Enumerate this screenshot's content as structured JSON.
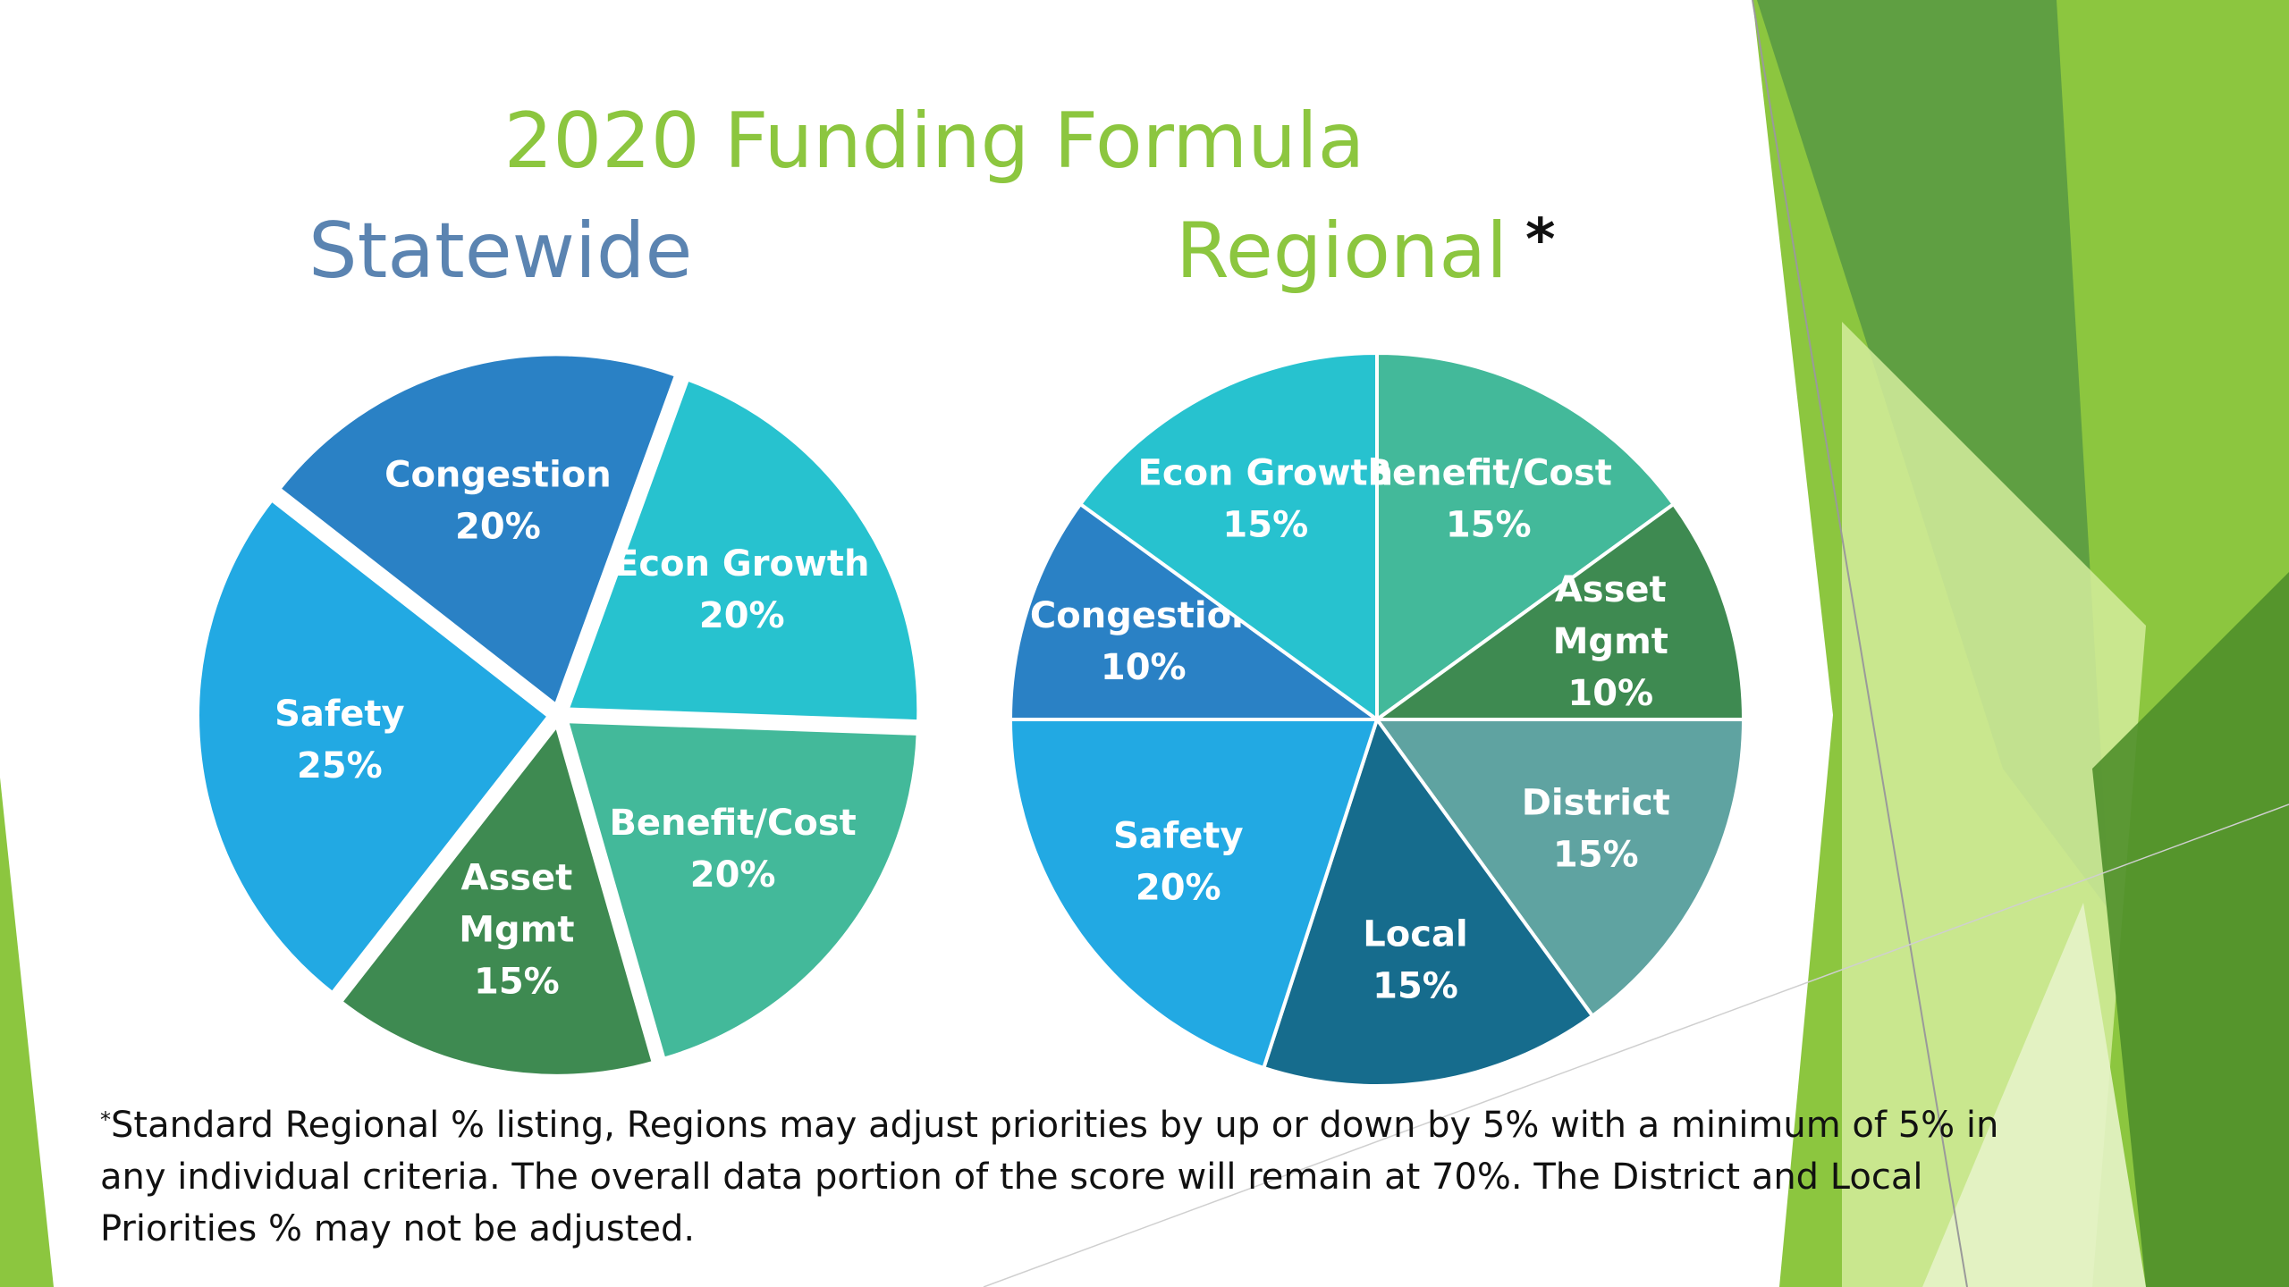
{
  "slide": {
    "title": "2020 Funding Formula",
    "left_heading": "Statewide",
    "right_heading": "Regional",
    "right_heading_mark": "*",
    "footnote_marker": "*",
    "footnote_text": "Standard Regional % listing, Regions may adjust priorities by up or down by 5% with a minimum of 5% in any individual criteria.  The overall data portion of the score will remain at 70%.  The District and Local Priorities % may not be adjusted."
  },
  "colors": {
    "title_green": "#8cc63f",
    "heading_blue": "#5b84b1"
  },
  "chart_data": [
    {
      "type": "pie",
      "title": "Statewide",
      "slices": [
        {
          "label": "Congestion",
          "value": 20,
          "value_label": "20%",
          "color": "#2a81c5"
        },
        {
          "label": "Econ Growth",
          "value": 20,
          "value_label": "20%",
          "color": "#27c2cf"
        },
        {
          "label": "Benefit/Cost",
          "value": 20,
          "value_label": "20%",
          "color": "#43b99a"
        },
        {
          "label": "Asset Mgmt",
          "value": 15,
          "value_label": "15%",
          "color": "#3e8a51"
        },
        {
          "label": "Safety",
          "value": 25,
          "value_label": "25%",
          "color": "#22a9e3"
        }
      ]
    },
    {
      "type": "pie",
      "title": "Regional",
      "slices": [
        {
          "label": "Benefit/Cost",
          "value": 15,
          "value_label": "15%",
          "color": "#43b99a"
        },
        {
          "label": "Asset Mgmt",
          "value": 10,
          "value_label": "10%",
          "color": "#3e8a51"
        },
        {
          "label": "District",
          "value": 15,
          "value_label": "15%",
          "color": "#5fa3a1"
        },
        {
          "label": "Local",
          "value": 15,
          "value_label": "15%",
          "color": "#166c8d"
        },
        {
          "label": "Safety",
          "value": 20,
          "value_label": "20%",
          "color": "#22a9e3"
        },
        {
          "label": "Congestion",
          "value": 10,
          "value_label": "10%",
          "color": "#2a81c5"
        },
        {
          "label": "Econ Growth",
          "value": 15,
          "value_label": "15%",
          "color": "#27c2cf"
        }
      ]
    }
  ]
}
